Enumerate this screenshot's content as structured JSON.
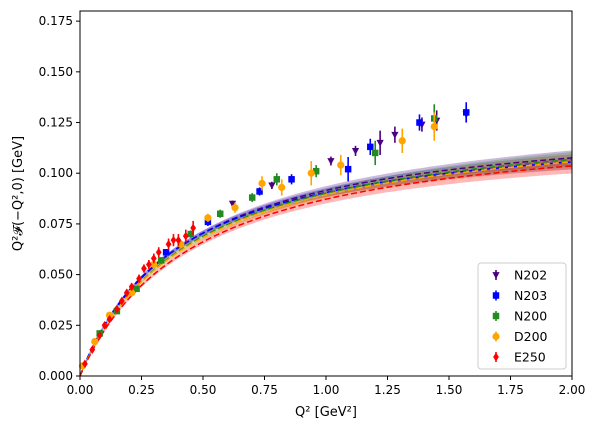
{
  "chart_data": {
    "type": "scatter",
    "title": "",
    "xlabel": "Q²  [GeV²]",
    "ylabel": "Q²𝓕(−Q²,0)  [GeV]",
    "xlim": [
      0,
      2.0
    ],
    "ylim": [
      0,
      0.18
    ],
    "xticks": [
      "0.00",
      "0.25",
      "0.50",
      "0.75",
      "1.00",
      "1.25",
      "1.50",
      "1.75",
      "2.00"
    ],
    "yticks": [
      "0.000",
      "0.025",
      "0.050",
      "0.075",
      "0.100",
      "0.125",
      "0.150",
      "0.175"
    ],
    "grid": false,
    "legend_position": "bottom-right",
    "series": [
      {
        "name": "N202",
        "color": "#4b0082",
        "marker": "triangle-down",
        "curve": {
          "a": 0.3072,
          "b": 2.356
        },
        "points": [
          [
            0.62,
            0.085
          ],
          [
            0.78,
            0.094
          ],
          [
            1.02,
            0.106
          ],
          [
            1.12,
            0.111
          ],
          [
            1.22,
            0.115
          ],
          [
            1.28,
            0.119
          ],
          [
            1.39,
            0.124
          ],
          [
            1.45,
            0.126
          ],
          [
            1.57,
            0.129
          ]
        ],
        "yerr": [
          0.0015,
          0.0018,
          0.0022,
          0.0025,
          0.006,
          0.004,
          0.0035,
          0.005,
          0.004
        ]
      },
      {
        "name": "N203",
        "color": "#0000ff",
        "marker": "square",
        "curve": {
          "a": 0.3168,
          "b": 2.5
        },
        "points": [
          [
            0.35,
            0.061
          ],
          [
            0.52,
            0.076
          ],
          [
            0.73,
            0.091
          ],
          [
            0.86,
            0.097
          ],
          [
            1.09,
            0.102
          ],
          [
            1.18,
            0.113
          ],
          [
            1.38,
            0.125
          ],
          [
            1.57,
            0.13
          ]
        ],
        "yerr": [
          0.0015,
          0.002,
          0.002,
          0.0025,
          0.006,
          0.004,
          0.004,
          0.005
        ]
      },
      {
        "name": "N200",
        "color": "#228b22",
        "marker": "square",
        "curve": {
          "a": 0.2906,
          "b": 2.222
        },
        "points": [
          [
            0.08,
            0.021
          ],
          [
            0.15,
            0.032
          ],
          [
            0.23,
            0.043
          ],
          [
            0.33,
            0.057
          ],
          [
            0.45,
            0.07
          ],
          [
            0.57,
            0.08
          ],
          [
            0.7,
            0.088
          ],
          [
            0.8,
            0.097
          ],
          [
            0.96,
            0.101
          ],
          [
            1.2,
            0.11
          ],
          [
            1.44,
            0.127
          ]
        ],
        "yerr": [
          0.001,
          0.0012,
          0.0014,
          0.0016,
          0.0018,
          0.002,
          0.0022,
          0.003,
          0.003,
          0.006,
          0.007
        ]
      },
      {
        "name": "D200",
        "color": "#ffa500",
        "marker": "circle",
        "curve": {
          "a": 0.2898,
          "b": 2.244
        },
        "points": [
          [
            0.01,
            0.005
          ],
          [
            0.06,
            0.017
          ],
          [
            0.12,
            0.03
          ],
          [
            0.21,
            0.041
          ],
          [
            0.3,
            0.055
          ],
          [
            0.41,
            0.065
          ],
          [
            0.52,
            0.078
          ],
          [
            0.63,
            0.083
          ],
          [
            0.74,
            0.095
          ],
          [
            0.82,
            0.093
          ],
          [
            0.94,
            0.1
          ],
          [
            1.06,
            0.104
          ],
          [
            1.31,
            0.116
          ],
          [
            1.44,
            0.123
          ]
        ],
        "yerr": [
          0.0015,
          0.0012,
          0.0015,
          0.0018,
          0.0018,
          0.002,
          0.002,
          0.0025,
          0.0035,
          0.004,
          0.006,
          0.005,
          0.006,
          0.007
        ]
      },
      {
        "name": "E250",
        "color": "#ff0000",
        "marker": "diamond",
        "curve": {
          "a": 0.2747,
          "b": 2.151
        },
        "points": [
          [
            0.02,
            0.006
          ],
          [
            0.05,
            0.013
          ],
          [
            0.08,
            0.02
          ],
          [
            0.1,
            0.025
          ],
          [
            0.12,
            0.028
          ],
          [
            0.15,
            0.033
          ],
          [
            0.17,
            0.037
          ],
          [
            0.19,
            0.041
          ],
          [
            0.21,
            0.044
          ],
          [
            0.24,
            0.048
          ],
          [
            0.26,
            0.053
          ],
          [
            0.28,
            0.055
          ],
          [
            0.3,
            0.058
          ],
          [
            0.32,
            0.061
          ],
          [
            0.36,
            0.065
          ],
          [
            0.38,
            0.067
          ],
          [
            0.4,
            0.067
          ],
          [
            0.43,
            0.069
          ],
          [
            0.46,
            0.073
          ]
        ],
        "yerr": [
          0.001,
          0.0012,
          0.0012,
          0.0014,
          0.0014,
          0.0015,
          0.0016,
          0.0018,
          0.0018,
          0.002,
          0.002,
          0.0022,
          0.0024,
          0.0025,
          0.0028,
          0.003,
          0.003,
          0.0032,
          0.0035
        ]
      }
    ]
  }
}
